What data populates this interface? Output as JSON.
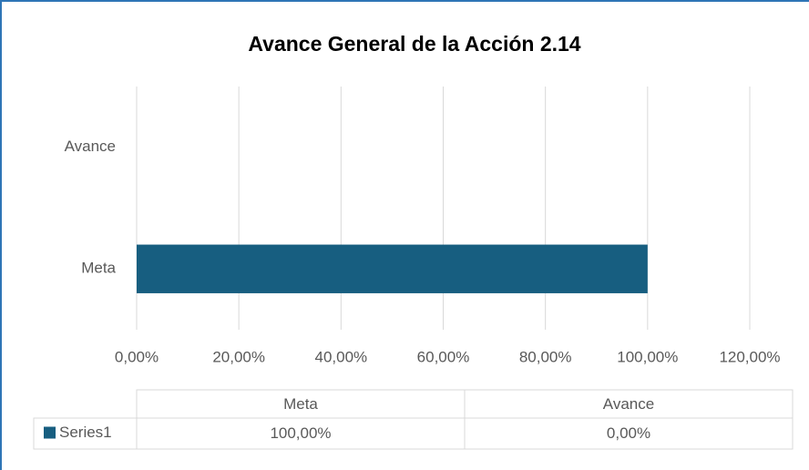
{
  "chart_data": {
    "type": "hbar",
    "title": "Avance General de la Acción 2.14",
    "categories": [
      "Meta",
      "Avance"
    ],
    "series": [
      {
        "name": "Series1",
        "color": "#175e80",
        "values": [
          100,
          0
        ],
        "value_labels": [
          "100,00%",
          "0,00%"
        ]
      }
    ],
    "xlim": [
      0,
      120
    ],
    "xticks": [
      {
        "value": 0,
        "label": "0,00%"
      },
      {
        "value": 20,
        "label": "20,00%"
      },
      {
        "value": 40,
        "label": "40,00%"
      },
      {
        "value": 60,
        "label": "60,00%"
      },
      {
        "value": 80,
        "label": "80,00%"
      },
      {
        "value": 100,
        "label": "100,00%"
      },
      {
        "value": 120,
        "label": "120,00%"
      }
    ],
    "grid": true,
    "data_table": true
  }
}
